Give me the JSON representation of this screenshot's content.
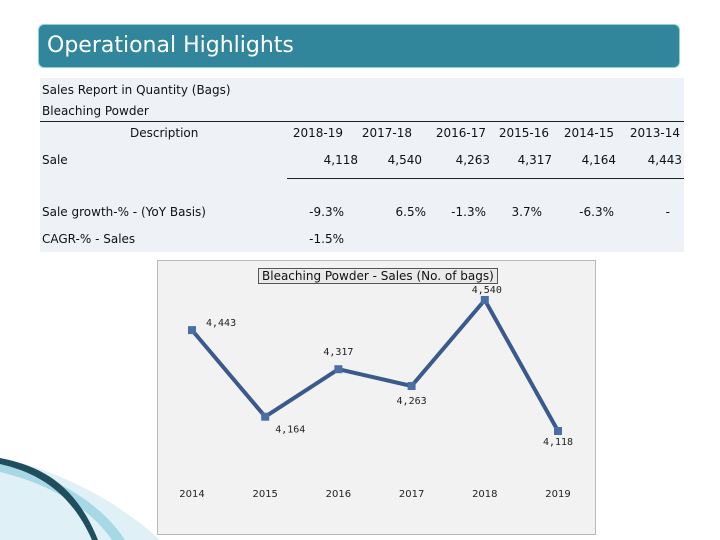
{
  "header": {
    "title": "Operational Highlights"
  },
  "report": {
    "heading": "Sales Report in Quantity (Bags)",
    "product": "Bleaching Powder",
    "description_label": "Description",
    "years": [
      "2018-19",
      "2017-18",
      "2016-17",
      "2015-16",
      "2014-15",
      "2013-14"
    ],
    "rows": {
      "sale": {
        "label": "Sale",
        "values": [
          "4,118",
          "4,540",
          "4,263",
          "4,317",
          "4,164",
          "4,443"
        ]
      },
      "growth": {
        "label": "Sale growth-% - (YoY Basis)",
        "values": [
          "-9.3%",
          "6.5%",
          "-1.3%",
          "3.7%",
          "-6.3%",
          "-"
        ]
      },
      "cagr": {
        "label": "CAGR-% - Sales",
        "values": [
          "-1.5%"
        ]
      }
    }
  },
  "chart_data": {
    "type": "line",
    "title": "Bleaching Powder - Sales (No. of bags)",
    "x": [
      "2014",
      "2015",
      "2016",
      "2017",
      "2018",
      "2019"
    ],
    "values": [
      4443,
      4164,
      4317,
      4263,
      4540,
      4118
    ],
    "data_labels": [
      "4,443",
      "4,164",
      "4,317",
      "4,263",
      "4,540",
      "4,118"
    ],
    "ylim": [
      4050,
      4600
    ],
    "xlabel": "",
    "ylabel": "",
    "line_color": "#3a5a8c",
    "marker_color": "#4a6fa5"
  }
}
